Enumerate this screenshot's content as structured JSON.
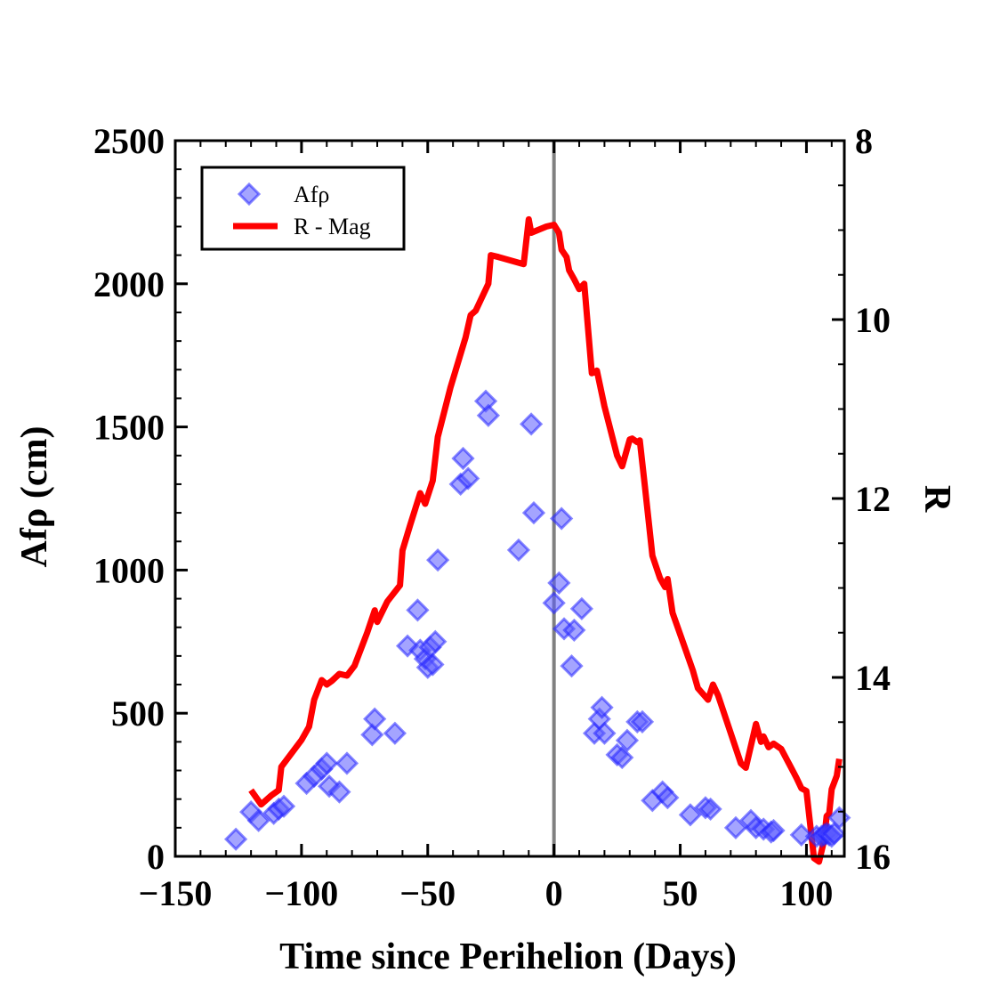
{
  "chart_data": {
    "type": "scatter+line",
    "title": "",
    "xlabel": "Time since Perihelion (Days)",
    "ylabel_left": "Afρ (cm)",
    "ylabel_right": "R",
    "xlim": [
      -150,
      115
    ],
    "ylim_left": [
      0,
      2500
    ],
    "ylim_right_inverted": [
      8,
      16
    ],
    "x_ticks": [
      -150,
      -100,
      -50,
      0,
      50,
      100
    ],
    "x_tick_labels": [
      "−150",
      "−100",
      "−50",
      "0",
      "50",
      "100"
    ],
    "y_left_ticks": [
      0,
      500,
      1000,
      1500,
      2000,
      2500
    ],
    "y_left_tick_labels": [
      "0",
      "500",
      "1000",
      "1500",
      "2000",
      "2500"
    ],
    "y_right_ticks": [
      8,
      10,
      12,
      14,
      16
    ],
    "y_right_tick_labels": [
      "8",
      "10",
      "12",
      "14",
      "16"
    ],
    "perihelion_line_x": 0,
    "legend": {
      "position": "top-left",
      "entries": [
        {
          "label": "Afρ",
          "marker": "diamond",
          "color": "#3a3aff"
        },
        {
          "label": "R - Mag",
          "marker": "line",
          "color": "#ff0000"
        }
      ]
    },
    "colors": {
      "afrho": "#5a5aff",
      "afrho_edge": "#2323ff",
      "rmag": "#ff0000",
      "perihelion": "#808080"
    },
    "series": [
      {
        "name": "Afρ",
        "axis": "left",
        "points": [
          [
            -126,
            60
          ],
          [
            -120,
            155
          ],
          [
            -117,
            125
          ],
          [
            -111,
            150
          ],
          [
            -109,
            165
          ],
          [
            -107,
            175
          ],
          [
            -98,
            255
          ],
          [
            -95,
            280
          ],
          [
            -92,
            305
          ],
          [
            -90,
            325
          ],
          [
            -89,
            245
          ],
          [
            -85,
            225
          ],
          [
            -82,
            325
          ],
          [
            -72,
            425
          ],
          [
            -71,
            480
          ],
          [
            -63,
            430
          ],
          [
            -58,
            735
          ],
          [
            -54,
            860
          ],
          [
            -53,
            720
          ],
          [
            -51,
            690
          ],
          [
            -50,
            660
          ],
          [
            -49,
            730
          ],
          [
            -48,
            670
          ],
          [
            -47,
            750
          ],
          [
            -46,
            1035
          ],
          [
            -37,
            1300
          ],
          [
            -36,
            1390
          ],
          [
            -34,
            1320
          ],
          [
            -27,
            1590
          ],
          [
            -26,
            1540
          ],
          [
            -14,
            1070
          ],
          [
            -9,
            1510
          ],
          [
            -8,
            1200
          ],
          [
            0,
            885
          ],
          [
            2,
            955
          ],
          [
            3,
            1180
          ],
          [
            4,
            795
          ],
          [
            7,
            665
          ],
          [
            8,
            790
          ],
          [
            11,
            865
          ],
          [
            16,
            430
          ],
          [
            18,
            480
          ],
          [
            19,
            520
          ],
          [
            20,
            430
          ],
          [
            25,
            355
          ],
          [
            27,
            345
          ],
          [
            29,
            405
          ],
          [
            33,
            470
          ],
          [
            35,
            470
          ],
          [
            39,
            195
          ],
          [
            43,
            225
          ],
          [
            45,
            205
          ],
          [
            54,
            145
          ],
          [
            60,
            170
          ],
          [
            62,
            165
          ],
          [
            72,
            100
          ],
          [
            78,
            125
          ],
          [
            80,
            100
          ],
          [
            83,
            95
          ],
          [
            86,
            85
          ],
          [
            87,
            90
          ],
          [
            98,
            75
          ],
          [
            104,
            70
          ],
          [
            106,
            70
          ],
          [
            107,
            75
          ],
          [
            108,
            80
          ],
          [
            109,
            75
          ],
          [
            110,
            70
          ],
          [
            111,
            80
          ],
          [
            113,
            135
          ]
        ]
      },
      {
        "name": "R - Mag",
        "axis": "right",
        "points": [
          [
            -120,
            15.26
          ],
          [
            -116,
            15.42
          ],
          [
            -112,
            15.32
          ],
          [
            -109,
            15.26
          ],
          [
            -108,
            15.0
          ],
          [
            -100,
            14.7
          ],
          [
            -97,
            14.55
          ],
          [
            -95,
            14.25
          ],
          [
            -92,
            14.03
          ],
          [
            -90,
            14.08
          ],
          [
            -88,
            14.04
          ],
          [
            -85,
            13.96
          ],
          [
            -82,
            13.98
          ],
          [
            -79,
            13.87
          ],
          [
            -74,
            13.5
          ],
          [
            -71,
            13.25
          ],
          [
            -70,
            13.38
          ],
          [
            -66,
            13.15
          ],
          [
            -61,
            12.97
          ],
          [
            -60,
            12.58
          ],
          [
            -57,
            12.3
          ],
          [
            -53,
            11.94
          ],
          [
            -51,
            12.06
          ],
          [
            -48,
            11.8
          ],
          [
            -46,
            11.31
          ],
          [
            -41,
            10.76
          ],
          [
            -35,
            10.2
          ],
          [
            -33,
            9.95
          ],
          [
            -31,
            9.9
          ],
          [
            -26,
            9.6
          ],
          [
            -25,
            9.28
          ],
          [
            -22,
            9.3
          ],
          [
            -12,
            9.38
          ],
          [
            -10,
            8.88
          ],
          [
            -9,
            9.03
          ],
          [
            -3,
            8.96
          ],
          [
            0,
            8.94
          ],
          [
            2,
            9.03
          ],
          [
            3,
            9.22
          ],
          [
            5,
            9.3
          ],
          [
            6,
            9.45
          ],
          [
            8,
            9.55
          ],
          [
            10,
            9.66
          ],
          [
            12,
            9.6
          ],
          [
            15,
            10.6
          ],
          [
            17,
            10.57
          ],
          [
            20,
            10.97
          ],
          [
            25,
            11.52
          ],
          [
            27,
            11.64
          ],
          [
            30,
            11.34
          ],
          [
            31,
            11.33
          ],
          [
            33,
            11.37
          ],
          [
            34,
            11.35
          ],
          [
            36,
            11.86
          ],
          [
            39,
            12.64
          ],
          [
            42,
            12.89
          ],
          [
            44,
            12.99
          ],
          [
            45,
            12.9
          ],
          [
            47,
            13.28
          ],
          [
            51,
            13.6
          ],
          [
            55,
            13.92
          ],
          [
            57,
            14.12
          ],
          [
            61,
            14.25
          ],
          [
            63,
            14.08
          ],
          [
            65,
            14.2
          ],
          [
            74,
            14.96
          ],
          [
            76,
            15.01
          ],
          [
            80,
            14.52
          ],
          [
            82,
            14.72
          ],
          [
            83,
            14.66
          ],
          [
            85,
            14.78
          ],
          [
            87,
            14.74
          ],
          [
            90,
            14.8
          ],
          [
            96,
            15.12
          ],
          [
            98,
            15.24
          ],
          [
            100,
            15.27
          ],
          [
            103,
            16.02
          ],
          [
            105,
            16.06
          ],
          [
            107,
            15.82
          ],
          [
            108,
            15.55
          ],
          [
            109,
            15.52
          ],
          [
            110,
            15.25
          ],
          [
            112,
            15.1
          ],
          [
            113,
            14.91
          ]
        ]
      }
    ]
  }
}
